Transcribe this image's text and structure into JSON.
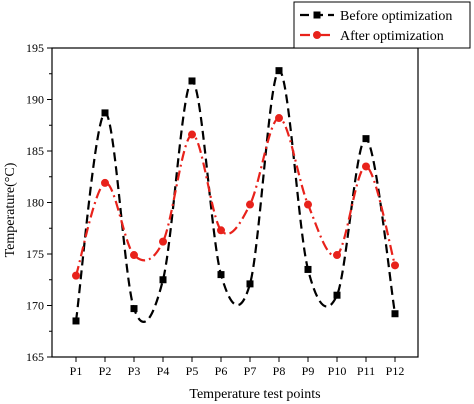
{
  "chart_data": {
    "type": "line",
    "title": "",
    "xlabel": "Temperature test points",
    "ylabel": "Temperature(°C)",
    "categories": [
      "P1",
      "P2",
      "P3",
      "P4",
      "P5",
      "P6",
      "P7",
      "P8",
      "P9",
      "P10",
      "P11",
      "P12"
    ],
    "ylim": [
      165,
      195
    ],
    "yticks": [
      165,
      170,
      175,
      180,
      185,
      190,
      195
    ],
    "grid": false,
    "legend_position": "top-right",
    "series": [
      {
        "name": "Before optimization",
        "color": "#000000",
        "line_style": "dashed",
        "marker": "square",
        "values": [
          168.5,
          188.7,
          169.7,
          172.5,
          191.8,
          173.0,
          172.1,
          192.8,
          173.5,
          171.0,
          186.2,
          169.2
        ]
      },
      {
        "name": "After optimization",
        "color": "#e8221b",
        "line_style": "dash-dot",
        "marker": "circle",
        "values": [
          172.9,
          181.9,
          174.9,
          176.2,
          186.6,
          177.3,
          179.8,
          188.2,
          179.8,
          174.9,
          183.5,
          173.9
        ]
      }
    ]
  }
}
